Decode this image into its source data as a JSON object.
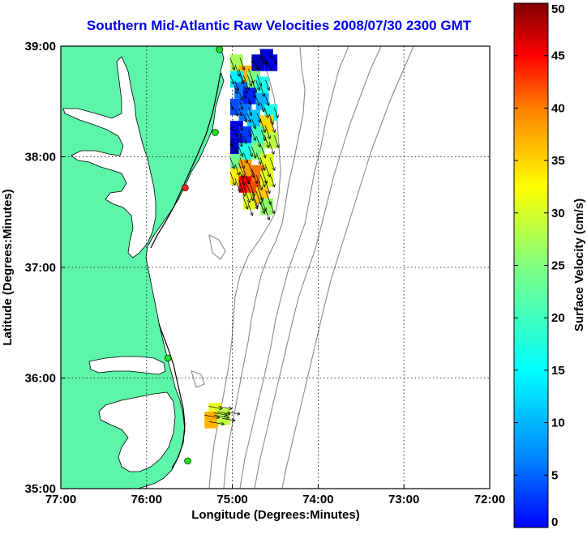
{
  "title": "Southern Mid-Atlantic Raw Velocities 2008/07/30 2300 GMT",
  "map": {
    "x_label": "Longitude (Degrees:Minutes)",
    "y_label": "Latitude (Degrees:Minutes)",
    "lon_range": [
      -77,
      -72
    ],
    "lat_range": [
      35,
      39
    ],
    "x_ticks": [
      {
        "value": -77,
        "label": "77:00"
      },
      {
        "value": -76,
        "label": "76:00"
      },
      {
        "value": -75,
        "label": "75:00"
      },
      {
        "value": -74,
        "label": "74:00"
      },
      {
        "value": -73,
        "label": "73:00"
      },
      {
        "value": -72,
        "label": "72:00"
      }
    ],
    "y_ticks": [
      {
        "value": 35,
        "label": "35:00"
      },
      {
        "value": 36,
        "label": "36:00"
      },
      {
        "value": 37,
        "label": "37:00"
      },
      {
        "value": 38,
        "label": "38:00"
      },
      {
        "value": 39,
        "label": "39:00"
      }
    ],
    "grid": "dotted",
    "colors": {
      "land": "#5cf5a9",
      "water": "#ffffff",
      "coastline": "#000000",
      "bathymetry": "#8a8a8a",
      "grid": "#000000"
    }
  },
  "colorbar": {
    "label": "Surface Velocity (cm/s)",
    "min": 0,
    "max": 50,
    "ticks": [
      {
        "value": 0,
        "label": "0"
      },
      {
        "value": 5,
        "label": "5"
      },
      {
        "value": 10,
        "label": "10"
      },
      {
        "value": 15,
        "label": "15"
      },
      {
        "value": 20,
        "label": "20"
      },
      {
        "value": 25,
        "label": "25"
      },
      {
        "value": 30,
        "label": "30"
      },
      {
        "value": 35,
        "label": "35"
      },
      {
        "value": 40,
        "label": "40"
      },
      {
        "value": 45,
        "label": "45"
      },
      {
        "value": 50,
        "label": "50"
      }
    ],
    "colormap": "jet"
  },
  "stations": [
    {
      "lon": -75.15,
      "lat": 38.97,
      "color": "#22dd22"
    },
    {
      "lon": -75.2,
      "lat": 38.22,
      "color": "#22dd22"
    },
    {
      "lon": -75.55,
      "lat": 37.72,
      "color": "#ee2222"
    },
    {
      "lon": -75.75,
      "lat": 36.18,
      "color": "#22dd22"
    },
    {
      "lon": -75.52,
      "lat": 35.25,
      "color": "#22dd22"
    }
  ],
  "velocity_fields": [
    {
      "region": "north",
      "cells": [
        {
          "lon": -74.6,
          "lat": 38.9,
          "speed": 4
        },
        {
          "lon": -74.55,
          "lat": 38.85,
          "speed": 5
        },
        {
          "lon": -74.7,
          "lat": 38.85,
          "speed": 3
        },
        {
          "lon": -74.95,
          "lat": 38.85,
          "speed": 27
        },
        {
          "lon": -74.85,
          "lat": 38.75,
          "speed": 35
        },
        {
          "lon": -74.75,
          "lat": 38.7,
          "speed": 25
        },
        {
          "lon": -74.65,
          "lat": 38.65,
          "speed": 20
        },
        {
          "lon": -74.95,
          "lat": 38.7,
          "speed": 18
        },
        {
          "lon": -74.9,
          "lat": 38.6,
          "speed": 12
        },
        {
          "lon": -74.8,
          "lat": 38.55,
          "speed": 8
        },
        {
          "lon": -74.65,
          "lat": 38.5,
          "speed": 15
        },
        {
          "lon": -74.55,
          "lat": 38.4,
          "speed": 20
        },
        {
          "lon": -74.6,
          "lat": 38.3,
          "speed": 33
        },
        {
          "lon": -74.95,
          "lat": 38.45,
          "speed": 10
        },
        {
          "lon": -74.85,
          "lat": 38.4,
          "speed": 12
        },
        {
          "lon": -74.75,
          "lat": 38.35,
          "speed": 16
        },
        {
          "lon": -74.95,
          "lat": 38.25,
          "speed": 5
        },
        {
          "lon": -74.85,
          "lat": 38.2,
          "speed": 9
        },
        {
          "lon": -74.7,
          "lat": 38.2,
          "speed": 22
        },
        {
          "lon": -74.55,
          "lat": 38.15,
          "speed": 28
        },
        {
          "lon": -74.95,
          "lat": 38.1,
          "speed": 3
        },
        {
          "lon": -74.85,
          "lat": 38.05,
          "speed": 20
        },
        {
          "lon": -74.7,
          "lat": 38.05,
          "speed": 25
        },
        {
          "lon": -74.6,
          "lat": 37.95,
          "speed": 30
        },
        {
          "lon": -74.95,
          "lat": 37.95,
          "speed": 24
        },
        {
          "lon": -74.85,
          "lat": 37.9,
          "speed": 36
        },
        {
          "lon": -74.7,
          "lat": 37.85,
          "speed": 38
        },
        {
          "lon": -74.6,
          "lat": 37.8,
          "speed": 30
        },
        {
          "lon": -74.95,
          "lat": 37.82,
          "speed": 32
        },
        {
          "lon": -74.85,
          "lat": 37.75,
          "speed": 44
        },
        {
          "lon": -74.75,
          "lat": 37.7,
          "speed": 40
        },
        {
          "lon": -74.65,
          "lat": 37.65,
          "speed": 34
        },
        {
          "lon": -74.8,
          "lat": 37.6,
          "speed": 30
        },
        {
          "lon": -74.6,
          "lat": 37.55,
          "speed": 26
        }
      ]
    },
    {
      "region": "south",
      "cells": [
        {
          "lon": -75.2,
          "lat": 35.7,
          "speed": 30
        },
        {
          "lon": -75.25,
          "lat": 35.62,
          "speed": 35
        },
        {
          "lon": -75.1,
          "lat": 35.65,
          "speed": 28
        }
      ]
    }
  ]
}
